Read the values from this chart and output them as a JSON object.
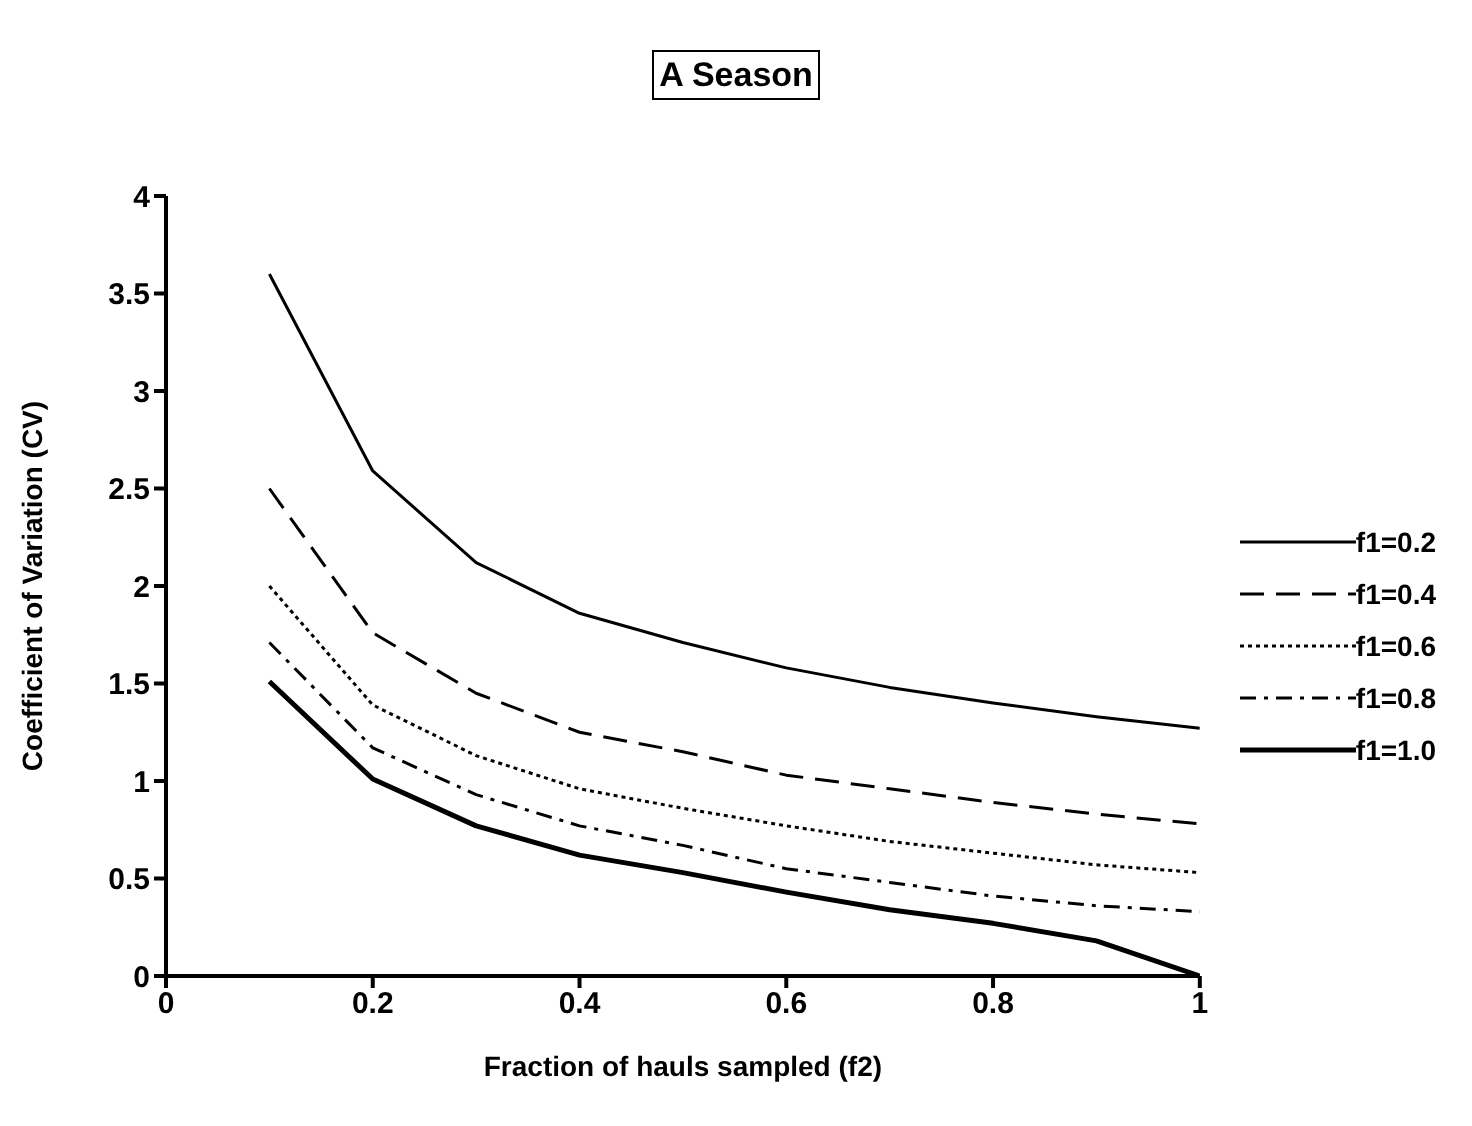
{
  "chart_data": {
    "type": "line",
    "title": "A Season",
    "xlabel": "Fraction of hauls sampled (f2)",
    "ylabel": "Coefficient of Variation (CV)",
    "x": [
      0.1,
      0.2,
      0.3,
      0.4,
      0.5,
      0.6,
      0.7,
      0.8,
      0.9,
      1.0
    ],
    "series": [
      {
        "name": "f1=0.2",
        "color": "#000000",
        "line_style": "solid",
        "values": [
          3.6,
          2.59,
          2.12,
          1.86,
          1.71,
          1.58,
          1.48,
          1.4,
          1.33,
          1.27
        ]
      },
      {
        "name": "f1=0.4",
        "color": "#000000",
        "line_style": "dashed",
        "values": [
          2.5,
          1.76,
          1.45,
          1.25,
          1.15,
          1.03,
          0.96,
          0.89,
          0.83,
          0.78
        ]
      },
      {
        "name": "f1=0.6",
        "color": "#000000",
        "line_style": "dotted",
        "values": [
          2.0,
          1.39,
          1.13,
          0.96,
          0.86,
          0.77,
          0.69,
          0.63,
          0.57,
          0.53
        ]
      },
      {
        "name": "f1=0.8",
        "color": "#000000",
        "line_style": "dashdot",
        "values": [
          1.71,
          1.17,
          0.93,
          0.77,
          0.67,
          0.55,
          0.48,
          0.41,
          0.36,
          0.33
        ]
      },
      {
        "name": "f1=1.0",
        "color": "#000000",
        "line_style": "solid",
        "values": [
          1.51,
          1.01,
          0.77,
          0.62,
          0.53,
          0.43,
          0.34,
          0.27,
          0.18,
          0.0
        ]
      }
    ],
    "xlim": [
      0,
      1
    ],
    "xticks": [
      0,
      0.2,
      0.4,
      0.6,
      0.8,
      1
    ],
    "ylim": [
      0,
      4
    ],
    "yticks": [
      0,
      0.5,
      1,
      1.5,
      2,
      2.5,
      3,
      3.5,
      4
    ],
    "grid": false,
    "legend": "right",
    "marker": "none"
  }
}
